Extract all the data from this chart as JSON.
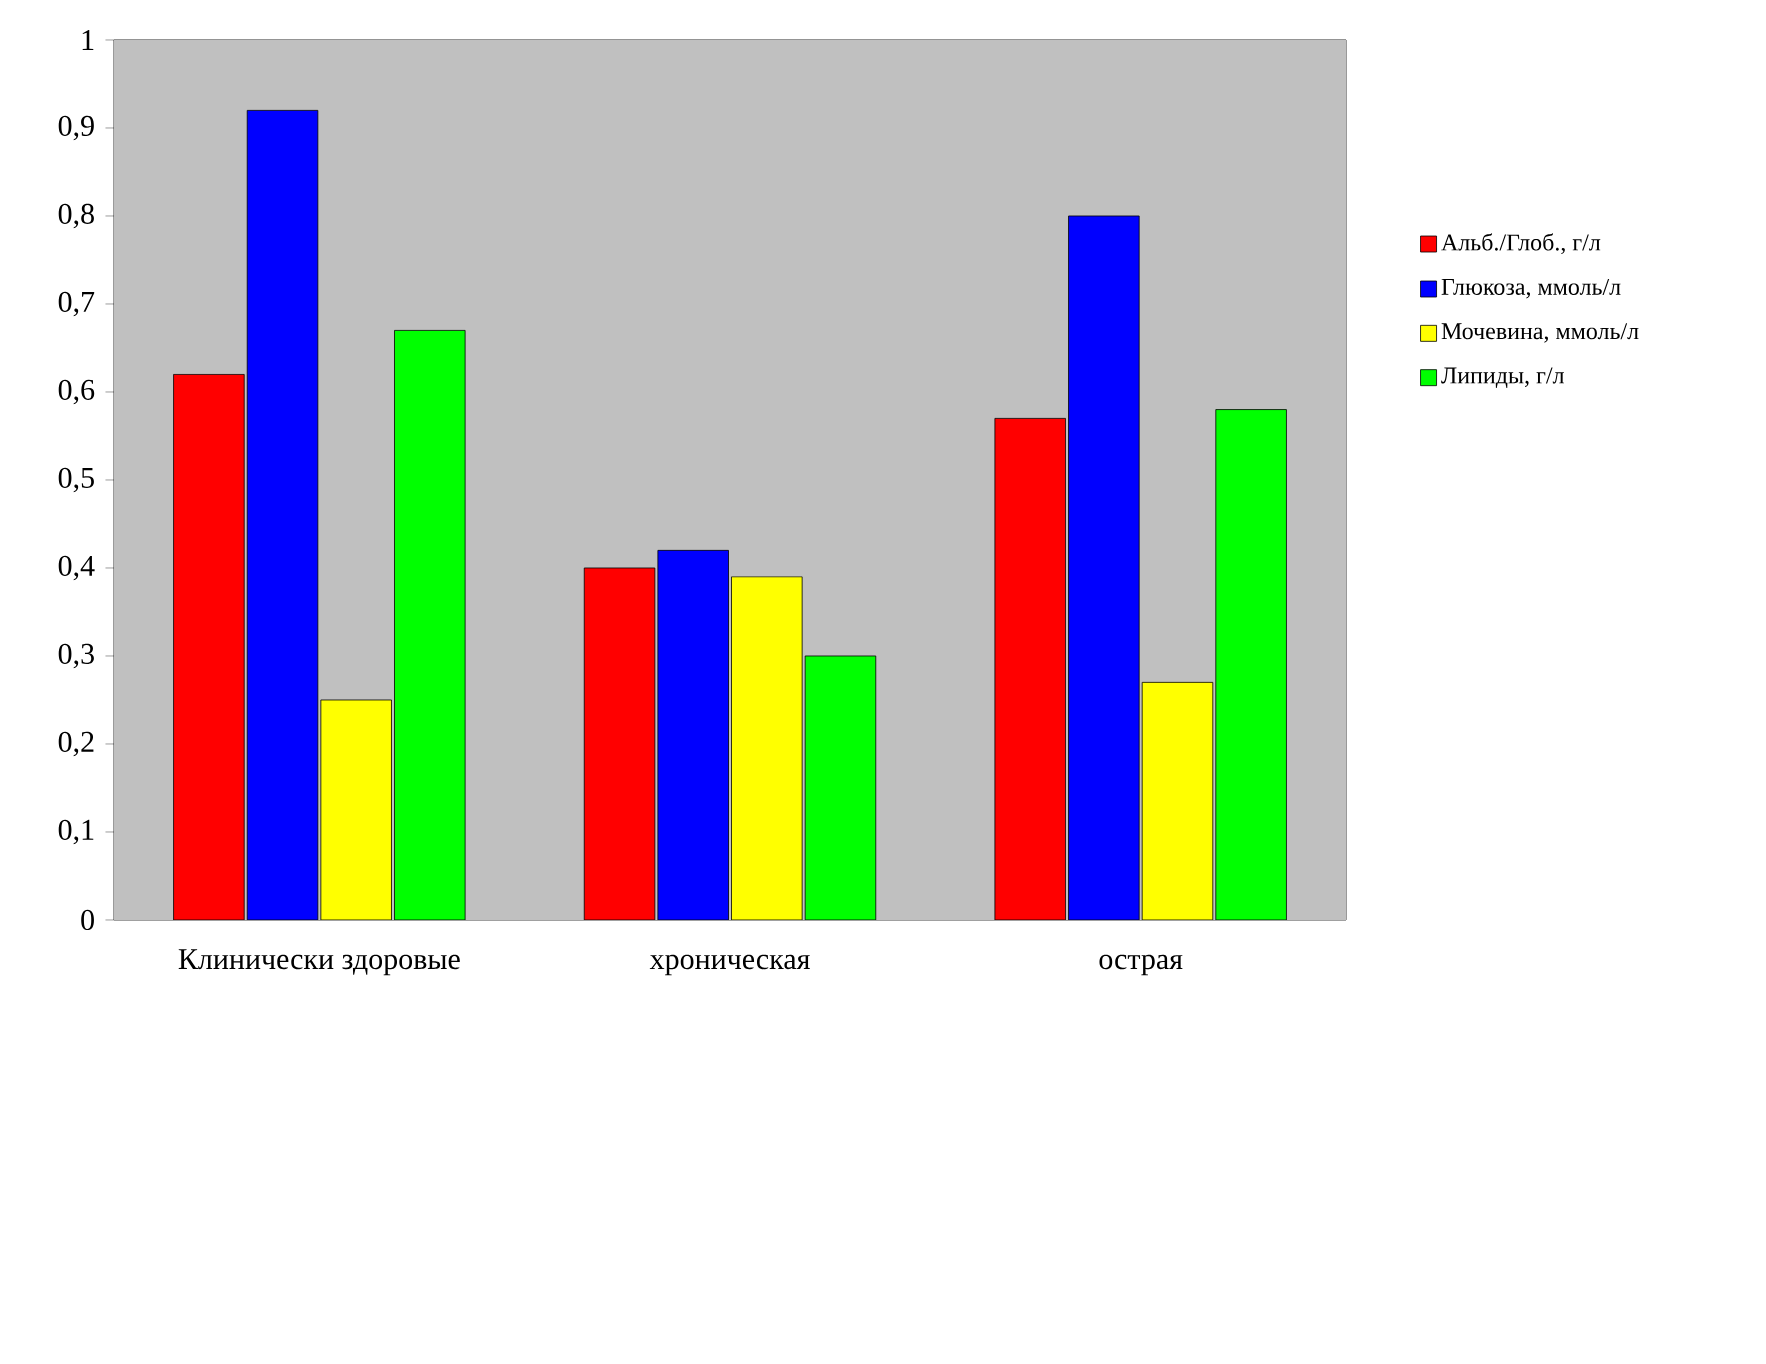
{
  "chart_data": {
    "type": "bar",
    "categories": [
      "Клинически здоровые",
      "хроническая",
      "острая"
    ],
    "series": [
      {
        "name": "Альб./Глоб., г/л",
        "color": "#ff0000",
        "values": [
          0.62,
          0.4,
          0.57
        ]
      },
      {
        "name": "Глюкоза, ммоль/л",
        "color": "#0000ff",
        "values": [
          0.92,
          0.42,
          0.8
        ]
      },
      {
        "name": "Мочевина, ммоль/л",
        "color": "#ffff00",
        "values": [
          0.25,
          0.39,
          0.27
        ]
      },
      {
        "name": "Липиды, г/л",
        "color": "#00ff00",
        "values": [
          0.67,
          0.3,
          0.58
        ]
      }
    ],
    "ylim": [
      0,
      1
    ],
    "yticks": [
      {
        "value": 0,
        "label": "0"
      },
      {
        "value": 0.1,
        "label": "0,1"
      },
      {
        "value": 0.2,
        "label": "0,2"
      },
      {
        "value": 0.3,
        "label": "0,3"
      },
      {
        "value": 0.4,
        "label": "0,4"
      },
      {
        "value": 0.5,
        "label": "0,5"
      },
      {
        "value": 0.6,
        "label": "0,6"
      },
      {
        "value": 0.7,
        "label": "0,7"
      },
      {
        "value": 0.8,
        "label": "0,8"
      },
      {
        "value": 0.9,
        "label": "0,9"
      },
      {
        "value": 1,
        "label": "1"
      }
    ],
    "legend": "right",
    "grid": false
  }
}
